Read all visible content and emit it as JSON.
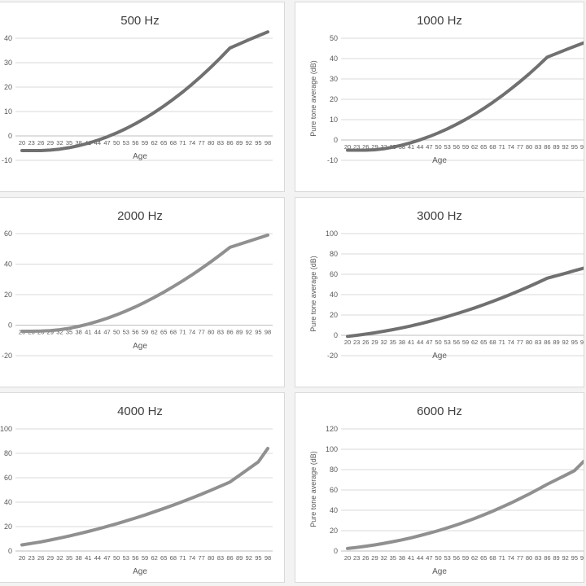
{
  "chart_data": [
    {
      "type": "line",
      "title": "500 Hz",
      "xlabel": "Age",
      "ylabel": "",
      "ylim": [
        -10,
        40
      ],
      "yticks": [
        "-10",
        "0",
        "10",
        "20",
        "30",
        "40"
      ],
      "categories": [
        "20",
        "23",
        "26",
        "29",
        "32",
        "35",
        "38",
        "41",
        "44",
        "47",
        "50",
        "53",
        "56",
        "59",
        "62",
        "65",
        "68",
        "71",
        "74",
        "77",
        "80",
        "83",
        "86",
        "89",
        "92",
        "95",
        "98"
      ],
      "series": [
        {
          "values": [
            -6.0,
            -6.0,
            -6.0,
            -5.8,
            -5.4,
            -4.8,
            -4.0,
            -3.0,
            -1.8,
            -0.4,
            1.2,
            3.0,
            5.0,
            7.2,
            9.6,
            12.2,
            15.0,
            18.0,
            21.2,
            24.6,
            28.2,
            32.0,
            36.0,
            37.7,
            39.4,
            41.0,
            42.6
          ]
        }
      ],
      "grid": true,
      "color": "#707070"
    },
    {
      "type": "line",
      "title": "1000 Hz",
      "xlabel": "Age",
      "ylabel": "Pure tone average (dB)",
      "ylim": [
        -10,
        50
      ],
      "yticks": [
        "-10",
        "0",
        "10",
        "20",
        "30",
        "40",
        "50"
      ],
      "categories": [
        "20",
        "23",
        "26",
        "29",
        "32",
        "35",
        "38",
        "41",
        "44",
        "47",
        "50",
        "53",
        "56",
        "59",
        "62",
        "65",
        "68",
        "71",
        "74",
        "77",
        "80",
        "83",
        "86",
        "89",
        "92",
        "95",
        "98"
      ],
      "series": [
        {
          "values": [
            -5.0,
            -5.0,
            -5.0,
            -4.8,
            -4.3,
            -3.5,
            -2.5,
            -1.3,
            0.1,
            1.7,
            3.5,
            5.5,
            7.7,
            10.1,
            12.7,
            15.5,
            18.5,
            21.7,
            25.1,
            28.7,
            32.5,
            36.5,
            40.7,
            42.5,
            44.3,
            46.0,
            47.7
          ]
        }
      ],
      "grid": true,
      "color": "#707070"
    },
    {
      "type": "line",
      "title": "2000 Hz",
      "xlabel": "Age",
      "ylabel": "",
      "ylim": [
        -20,
        60
      ],
      "yticks": [
        "-20",
        "0",
        "20",
        "40",
        "60"
      ],
      "categories": [
        "20",
        "23",
        "26",
        "29",
        "32",
        "35",
        "38",
        "41",
        "44",
        "47",
        "50",
        "53",
        "56",
        "59",
        "62",
        "65",
        "68",
        "71",
        "74",
        "77",
        "80",
        "83",
        "86",
        "89",
        "92",
        "95",
        "98"
      ],
      "series": [
        {
          "values": [
            -4.0,
            -4.0,
            -3.9,
            -3.6,
            -3.0,
            -2.0,
            -0.8,
            0.7,
            2.5,
            4.5,
            6.8,
            9.3,
            12.0,
            15.0,
            18.2,
            21.6,
            25.2,
            29.0,
            33.0,
            37.2,
            41.6,
            46.2,
            51.0,
            53.0,
            55.0,
            57.0,
            59.0
          ]
        }
      ],
      "grid": true,
      "color": "#909090"
    },
    {
      "type": "line",
      "title": "3000 Hz",
      "xlabel": "Age",
      "ylabel": "Pure tone average (dB)",
      "ylim": [
        -20,
        100
      ],
      "yticks": [
        "-20",
        "0",
        "20",
        "40",
        "60",
        "80",
        "100"
      ],
      "categories": [
        "20",
        "23",
        "26",
        "29",
        "32",
        "35",
        "38",
        "41",
        "44",
        "47",
        "50",
        "53",
        "56",
        "59",
        "62",
        "65",
        "68",
        "71",
        "74",
        "77",
        "80",
        "83",
        "86",
        "89",
        "92",
        "95",
        "98"
      ],
      "series": [
        {
          "values": [
            -1.0,
            0.0,
            1.2,
            2.5,
            4.0,
            5.6,
            7.4,
            9.3,
            11.4,
            13.6,
            16.0,
            18.5,
            21.2,
            24.0,
            27.0,
            30.1,
            33.4,
            36.8,
            40.4,
            44.1,
            48.0,
            52.0,
            56.2,
            58.6,
            61.0,
            63.5,
            66.0
          ]
        }
      ],
      "grid": true,
      "color": "#707070"
    },
    {
      "type": "line",
      "title": "4000 Hz",
      "xlabel": "Age",
      "ylabel": "",
      "ylim": [
        0,
        100
      ],
      "yticks": [
        "0",
        "20",
        "40",
        "60",
        "80",
        "100"
      ],
      "categories": [
        "20",
        "23",
        "26",
        "29",
        "32",
        "35",
        "38",
        "41",
        "44",
        "47",
        "50",
        "53",
        "56",
        "59",
        "62",
        "65",
        "68",
        "71",
        "74",
        "77",
        "80",
        "83",
        "86",
        "89",
        "92",
        "95",
        "98"
      ],
      "series": [
        {
          "values": [
            5.0,
            6.2,
            7.5,
            9.0,
            10.6,
            12.3,
            14.1,
            16.0,
            18.0,
            20.1,
            22.3,
            24.6,
            27.0,
            29.5,
            32.1,
            34.8,
            37.6,
            40.5,
            43.5,
            46.6,
            49.8,
            53.1,
            56.5,
            62.0,
            67.5,
            73.0,
            84.0
          ]
        }
      ],
      "grid": true,
      "color": "#909090"
    },
    {
      "type": "line",
      "title": "6000 Hz",
      "xlabel": "Age",
      "ylabel": "Pure tone average (dB)",
      "ylim": [
        0,
        120
      ],
      "yticks": [
        "0",
        "20",
        "40",
        "60",
        "80",
        "100",
        "120"
      ],
      "categories": [
        "20",
        "23",
        "26",
        "29",
        "32",
        "35",
        "38",
        "41",
        "44",
        "47",
        "50",
        "53",
        "56",
        "59",
        "62",
        "65",
        "68",
        "71",
        "74",
        "77",
        "80",
        "83",
        "86",
        "89",
        "92",
        "95",
        "98"
      ],
      "series": [
        {
          "values": [
            2.5,
            3.5,
            4.7,
            6.0,
            7.5,
            9.2,
            11.0,
            13.0,
            15.2,
            17.5,
            20.0,
            22.7,
            25.6,
            28.7,
            32.0,
            35.5,
            39.2,
            43.1,
            47.2,
            51.5,
            56.0,
            60.7,
            65.6,
            70.0,
            74.5,
            79.0,
            88.0
          ]
        }
      ],
      "grid": true,
      "color": "#909090"
    }
  ]
}
